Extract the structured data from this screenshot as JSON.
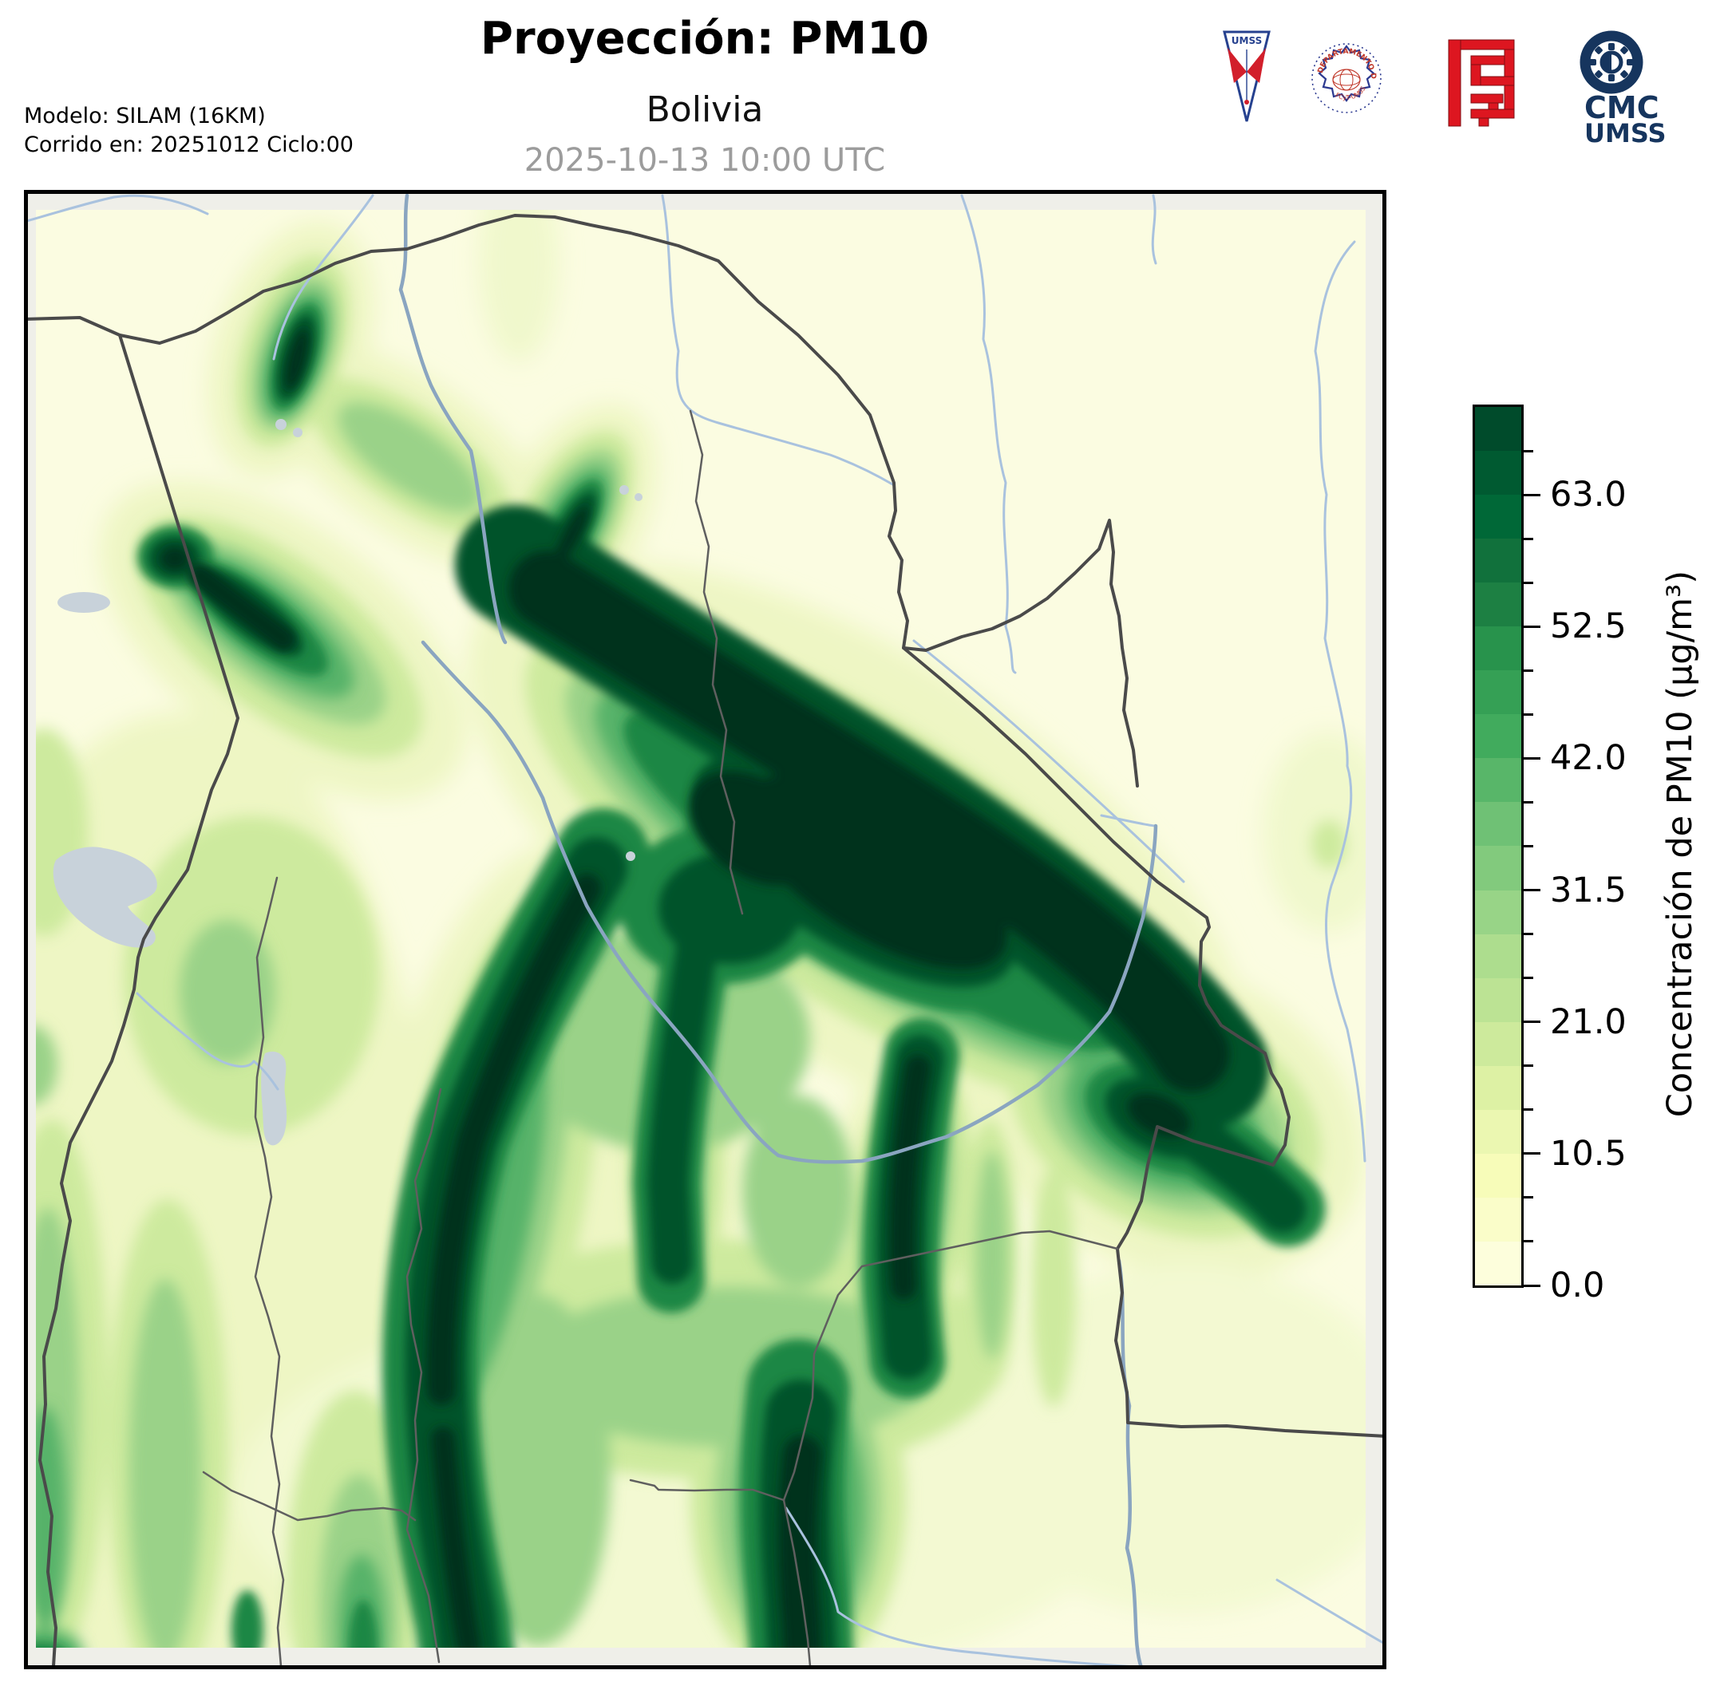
{
  "header": {
    "title": "Proyección: PM10",
    "subtitle": "Bolivia",
    "valid_time": "2025-10-13 10:00 UTC",
    "model_line1": "Modelo: SILAM (16KM)",
    "model_line2": "Corrido en: 20251012 Ciclo:00"
  },
  "logos": {
    "umss_pennant_text": "UMSS",
    "fisica_seal_top": "DEPARTAMENTO DE FÍSICA",
    "fisica_seal_bottom": "FCyT-UMSS",
    "cmc_line1": "CMC",
    "cmc_line2": "UMSS",
    "navy": "#16355e",
    "seal_blue": "#2b3990",
    "seal_red": "#c0392b",
    "pennant_blue": "#26418f",
    "pennant_red": "#d21f2b",
    "fcyt_red": "#dd1620"
  },
  "colorbar": {
    "label": "Concentración de PM10 (µg/m³)",
    "min": 0.0,
    "max": 70.0,
    "step": 3.5,
    "tick_labels": [
      "0.0",
      "10.5",
      "21.0",
      "31.5",
      "42.0",
      "52.5",
      "63.0"
    ],
    "colors": [
      "#fdfedc",
      "#fafdc9",
      "#f7fcb9",
      "#ebf7b1",
      "#ddf1a4",
      "#cdea9c",
      "#bce394",
      "#addd8e",
      "#98d487",
      "#82ca7d",
      "#6fc175",
      "#58b669",
      "#41ab5d",
      "#35a055",
      "#28934c",
      "#1d8043",
      "#11713c",
      "#006837",
      "#005a31",
      "#004b2b"
    ]
  },
  "chart_data": {
    "type": "heatmap",
    "variable": "PM10",
    "title": "Proyección: PM10",
    "region": "Bolivia",
    "valid_time": "2025-10-13 10:00 UTC",
    "model": "SILAM (16KM)",
    "run_date": "20251012",
    "run_cycle": "00",
    "colorbar_label": "Concentración de PM10 (µg/m³)",
    "colorbar_ticks": [
      0.0,
      10.5,
      21.0,
      31.5,
      42.0,
      52.5,
      63.0
    ],
    "scale_min": 0.0,
    "scale_max": 70.0,
    "contour_interval": 3.5,
    "colormap": "YlGn (pale yellow to dark green)",
    "legend_position": "right",
    "notes": "Filled-contour forecast: a large dark plume (>63 µg/m³) runs diagonally from central Bolivia to the SE border near Brazil; secondary dark plumes along the NW Andes, a narrow plume in the far NW, a long north-south stem reaching the southern edge, and a south-central vertical plume; background 0-10 µg/m³ over the N and NE lowlands; light-green bands (10-30 µg/m³) across the west and south."
  }
}
